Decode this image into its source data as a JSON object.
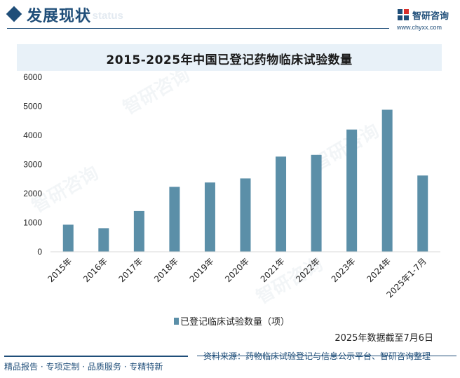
{
  "header": {
    "section_title": "发展现状",
    "section_sub": "ent status",
    "logo_name": "智研咨询",
    "logo_url": "www.chyxx.com"
  },
  "chart_data": {
    "type": "bar",
    "title": "2015-2025年中国已登记药物临床试验数量",
    "categories": [
      "2015年",
      "2016年",
      "2017年",
      "2018年",
      "2019年",
      "2020年",
      "2021年",
      "2022年",
      "2023年",
      "2024年",
      "2025年1-7月"
    ],
    "series": [
      {
        "name": "已登记临床试验数量（项）",
        "values": [
          930,
          810,
          1400,
          2230,
          2380,
          2520,
          3270,
          3330,
          4200,
          4880,
          2620
        ]
      }
    ],
    "ylim": [
      0,
      6000
    ],
    "yticks": [
      0,
      1000,
      2000,
      3000,
      4000,
      5000,
      6000
    ],
    "grid": false,
    "legend": "bottom",
    "bar_color": "#5b8fa8"
  },
  "notes": {
    "date_note": "2025年数据截至7月6日",
    "source": "资料来源：药物临床试验登记与信息公示平台、智研咨询整理",
    "slogan": "精品报告 · 专项定制 · 品质服务 · 专精特新"
  },
  "watermark": "智研咨询"
}
